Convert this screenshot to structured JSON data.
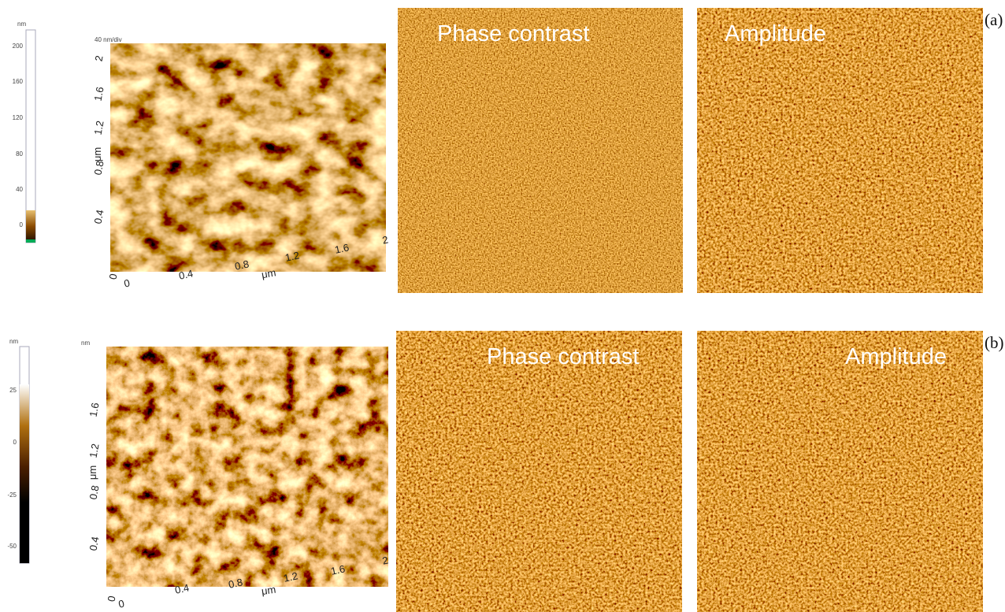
{
  "rows": [
    {
      "label": "(a)",
      "colorbar": {
        "unit": "nm",
        "ticks": [
          200,
          160,
          120,
          80,
          40,
          0
        ]
      },
      "surface": {
        "z_label": "40 nm/div",
        "y_label": "μm",
        "y_ticks": [
          2,
          1.6,
          1.2,
          0.8,
          0.4,
          0
        ],
        "x_label": "μm",
        "x_ticks": [
          0,
          0.4,
          0.8,
          1.2,
          1.6,
          2
        ]
      },
      "images": [
        {
          "title": "Phase contrast"
        },
        {
          "title": "Amplitude"
        }
      ]
    },
    {
      "label": "(b)",
      "colorbar": {
        "unit": "nm",
        "ticks": [
          25,
          0,
          -25,
          -50
        ]
      },
      "surface": {
        "z_label": "nm",
        "y_label": "μm",
        "y_ticks": [
          1.6,
          1.2,
          0.8,
          0.4,
          0
        ],
        "x_label": "μm",
        "x_ticks": [
          0,
          0.4,
          0.8,
          1.2,
          1.6,
          2
        ]
      },
      "images": [
        {
          "title": "Phase contrast"
        },
        {
          "title": "Amplitude"
        }
      ]
    }
  ]
}
